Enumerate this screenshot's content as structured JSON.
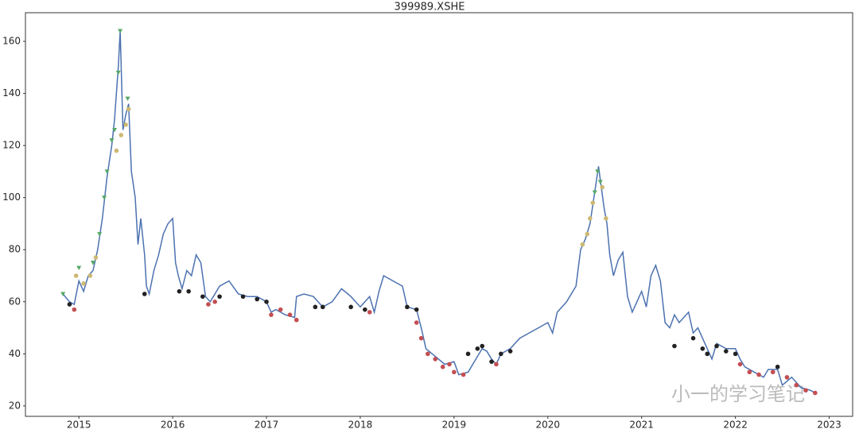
{
  "chart_data": {
    "type": "line",
    "title": "399989.XSHE",
    "watermark": "小一的学习笔记",
    "xlim": [
      2014.43,
      2023.25
    ],
    "xticks": [
      2015,
      2016,
      2017,
      2018,
      2019,
      2020,
      2021,
      2022,
      2023
    ],
    "ylim": [
      16,
      171
    ],
    "yticks": [
      20,
      40,
      60,
      80,
      100,
      120,
      140,
      160
    ],
    "grid": false,
    "series": [
      {
        "type": "line",
        "color": "#4c72b0",
        "x": [
          2014.83,
          2014.9,
          2014.95,
          2015.0,
          2015.05,
          2015.1,
          2015.15,
          2015.2,
          2015.25,
          2015.3,
          2015.35,
          2015.38,
          2015.42,
          2015.44,
          2015.47,
          2015.5,
          2015.53,
          2015.56,
          2015.6,
          2015.63,
          2015.66,
          2015.7,
          2015.72,
          2015.75,
          2015.8,
          2015.85,
          2015.9,
          2015.95,
          2016.0,
          2016.03,
          2016.06,
          2016.1,
          2016.15,
          2016.2,
          2016.25,
          2016.3,
          2016.35,
          2016.4,
          2016.45,
          2016.5,
          2016.6,
          2016.7,
          2016.8,
          2016.9,
          2017.0,
          2017.05,
          2017.1,
          2017.2,
          2017.3,
          2017.32,
          2017.4,
          2017.5,
          2017.6,
          2017.7,
          2017.8,
          2017.9,
          2018.0,
          2018.1,
          2018.15,
          2018.2,
          2018.25,
          2018.35,
          2018.45,
          2018.5,
          2018.6,
          2018.65,
          2018.7,
          2018.8,
          2018.9,
          2019.0,
          2019.05,
          2019.15,
          2019.2,
          2019.3,
          2019.35,
          2019.4,
          2019.45,
          2019.5,
          2019.6,
          2019.7,
          2019.8,
          2019.9,
          2020.0,
          2020.05,
          2020.1,
          2020.2,
          2020.3,
          2020.35,
          2020.4,
          2020.45,
          2020.5,
          2020.54,
          2020.57,
          2020.6,
          2020.63,
          2020.66,
          2020.7,
          2020.75,
          2020.8,
          2020.85,
          2020.9,
          2020.95,
          2021.0,
          2021.05,
          2021.1,
          2021.15,
          2021.2,
          2021.25,
          2021.3,
          2021.35,
          2021.4,
          2021.5,
          2021.55,
          2021.6,
          2021.65,
          2021.7,
          2021.75,
          2021.8,
          2021.9,
          2022.0,
          2022.05,
          2022.1,
          2022.2,
          2022.3,
          2022.35,
          2022.45,
          2022.5,
          2022.6,
          2022.7,
          2022.8,
          2022.85
        ],
        "values": [
          63,
          60,
          59,
          68,
          64,
          70,
          72,
          80,
          92,
          108,
          120,
          130,
          150,
          164,
          126,
          132,
          136,
          110,
          100,
          82,
          92,
          78,
          66,
          63,
          72,
          78,
          86,
          90,
          92,
          75,
          70,
          65,
          72,
          70,
          78,
          75,
          62,
          60,
          63,
          66,
          68,
          63,
          62,
          62,
          60,
          56,
          57,
          55,
          54,
          62,
          63,
          62,
          58,
          60,
          65,
          62,
          58,
          62,
          56,
          64,
          70,
          68,
          66,
          58,
          57,
          50,
          42,
          39,
          36,
          37,
          32,
          33,
          36,
          42,
          41,
          38,
          36,
          40,
          42,
          46,
          48,
          50,
          52,
          48,
          56,
          60,
          66,
          80,
          84,
          90,
          102,
          112,
          104,
          96,
          90,
          78,
          70,
          76,
          79,
          62,
          56,
          60,
          64,
          58,
          70,
          74,
          68,
          52,
          50,
          55,
          52,
          56,
          48,
          50,
          46,
          42,
          38,
          44,
          42,
          42,
          38,
          35,
          33,
          31,
          34,
          34,
          28,
          31,
          27,
          26,
          25
        ]
      },
      {
        "type": "scatter",
        "marker": "triangle",
        "color": "#55a868",
        "x": [
          2014.83,
          2015.0,
          2015.15,
          2015.22,
          2015.27,
          2015.3,
          2015.35,
          2015.38,
          2015.42,
          2015.44,
          2015.52,
          2020.5,
          2020.53,
          2020.56
        ],
        "values": [
          63,
          73,
          75,
          86,
          100,
          110,
          122,
          126,
          148,
          164,
          138,
          102,
          110,
          106
        ]
      },
      {
        "type": "scatter",
        "marker": "circle",
        "color": "#ccb974",
        "x": [
          2014.97,
          2015.05,
          2015.12,
          2015.18,
          2015.4,
          2015.45,
          2015.5,
          2015.53,
          2020.37,
          2020.42,
          2020.45,
          2020.48,
          2020.58,
          2020.62
        ],
        "values": [
          70,
          67,
          70,
          77,
          118,
          124,
          128,
          134,
          82,
          86,
          92,
          98,
          104,
          92
        ]
      },
      {
        "type": "scatter",
        "marker": "circle",
        "color": "#c44e52",
        "x": [
          2014.95,
          2016.38,
          2016.45,
          2017.05,
          2017.15,
          2017.25,
          2017.32,
          2018.1,
          2018.6,
          2018.65,
          2018.72,
          2018.8,
          2018.88,
          2018.95,
          2019.0,
          2019.1,
          2019.45,
          2022.05,
          2022.15,
          2022.25,
          2022.4,
          2022.55,
          2022.65,
          2022.75,
          2022.85
        ],
        "values": [
          57,
          59,
          60,
          55,
          57,
          55,
          53,
          56,
          52,
          46,
          40,
          38,
          35,
          36,
          33,
          32,
          36,
          36,
          33,
          32,
          33,
          31,
          28,
          26,
          25
        ]
      },
      {
        "type": "scatter",
        "marker": "circle",
        "color": "#222222",
        "x": [
          2014.9,
          2015.7,
          2016.07,
          2016.17,
          2016.32,
          2016.5,
          2016.75,
          2016.9,
          2017.0,
          2017.52,
          2017.6,
          2017.9,
          2018.05,
          2018.5,
          2018.6,
          2019.15,
          2019.25,
          2019.3,
          2019.4,
          2019.5,
          2019.6,
          2021.35,
          2021.55,
          2021.65,
          2021.7,
          2021.8,
          2021.9,
          2022.0,
          2022.45
        ],
        "values": [
          59,
          63,
          64,
          64,
          62,
          62,
          62,
          61,
          60,
          58,
          58,
          58,
          57,
          58,
          57,
          40,
          42,
          43,
          37,
          40,
          41,
          43,
          46,
          42,
          40,
          43,
          41,
          40,
          35
        ]
      }
    ]
  }
}
